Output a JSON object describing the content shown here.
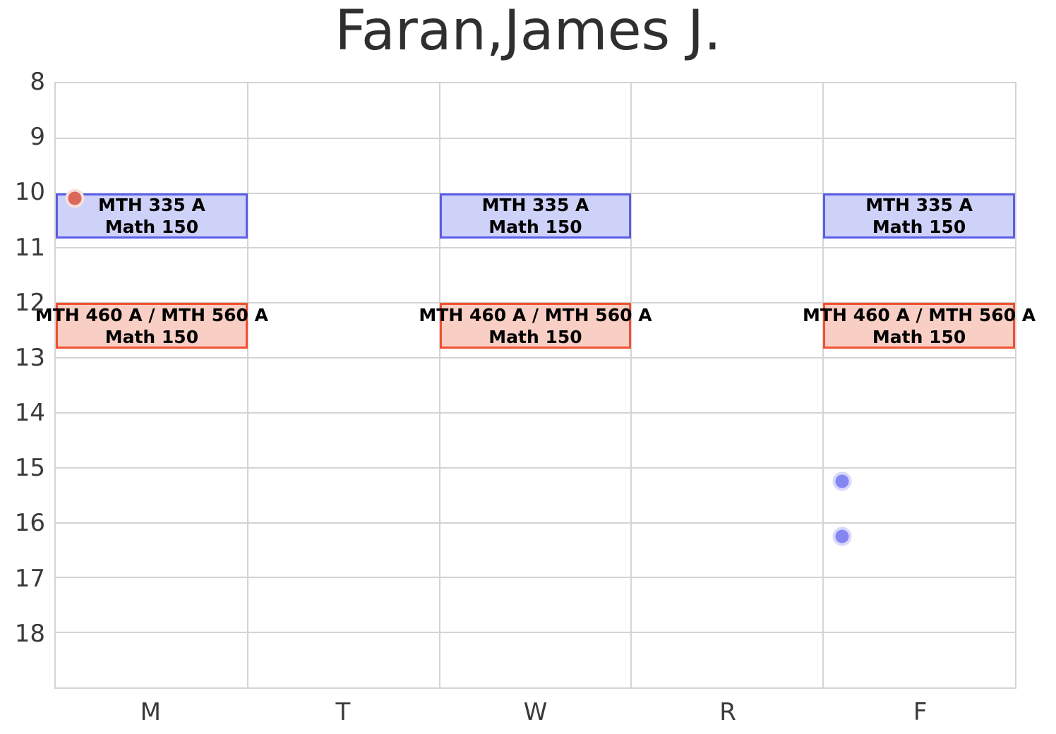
{
  "title": "Faran,James J.",
  "axes": {
    "y_tick_labels": [
      "8",
      "9",
      "10",
      "11",
      "12",
      "13",
      "14",
      "15",
      "16",
      "17",
      "18"
    ],
    "x_tick_labels": [
      "M",
      "T",
      "W",
      "R",
      "F"
    ]
  },
  "colors": {
    "background": "#ffffff",
    "grid": "#d4d4d4",
    "axis_text": "#3a3a3a",
    "title_text": "#2f2f2f",
    "event_text": "#000000",
    "blue_event_fill": "#cfd2f8",
    "blue_event_border": "#5a5ee8",
    "red_event_fill": "#f9cfc5",
    "red_event_border": "#f1502f",
    "red_point": "#dc685a",
    "red_point_ring": "#f7e0dc",
    "blue_point": "#8487f1",
    "blue_point_ring": "#d8d9fa"
  },
  "chart_data": {
    "type": "schedule-timetable",
    "title": "Faran,James J.",
    "x_categories": [
      "M",
      "T",
      "W",
      "R",
      "F"
    ],
    "y_axis": {
      "unit": "hour-of-day",
      "ticks": [
        8,
        9,
        10,
        11,
        12,
        13,
        14,
        15,
        16,
        17,
        18
      ],
      "range": [
        8,
        19
      ],
      "direction": "down"
    },
    "grid": true,
    "events": [
      {
        "title": "MTH 335 A",
        "subtitle": "Math 150",
        "days": [
          "M",
          "W",
          "F"
        ],
        "start_hour": 10.0,
        "end_hour": 10.83,
        "fill": "#cfd2f8",
        "border": "#5a5ee8"
      },
      {
        "title": "MTH 460 A / MTH 560 A",
        "subtitle": "Math 150",
        "days": [
          "M",
          "W",
          "F"
        ],
        "start_hour": 12.0,
        "end_hour": 12.83,
        "fill": "#f9cfc5",
        "border": "#f1502f"
      }
    ],
    "points": [
      {
        "day": "M",
        "hour": 10.1,
        "fill": "#dc685a",
        "ring": "#f7e0dc"
      },
      {
        "day": "F",
        "hour": 15.25,
        "fill": "#8487f1",
        "ring": "#d8d9fa"
      },
      {
        "day": "F",
        "hour": 16.25,
        "fill": "#8487f1",
        "ring": "#d8d9fa"
      }
    ],
    "point_x_offset_in_column": 0.1
  }
}
